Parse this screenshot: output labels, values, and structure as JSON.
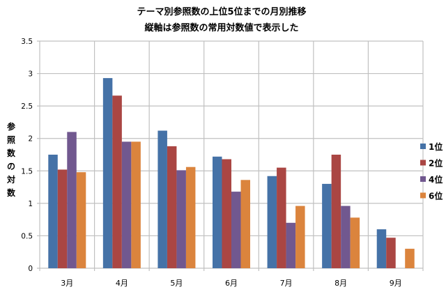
{
  "chart_data": {
    "type": "bar",
    "title": "テーマ別参照数の上位5位までの月別推移",
    "subtitle": "縦軸は参照数の常用対数値で表示した",
    "xlabel": "",
    "ylabel": "参照数の対数",
    "ylim": [
      0,
      3.5
    ],
    "yticks": [
      "0",
      "0.5",
      "1",
      "1.5",
      "2",
      "2.5",
      "3",
      "3.5"
    ],
    "grid": true,
    "legend_position": "right",
    "categories": [
      "3月",
      "4月",
      "5月",
      "6月",
      "7月",
      "8月",
      "9月"
    ],
    "series": [
      {
        "name": "1位",
        "color": "#4572A7",
        "values": [
          1.75,
          2.93,
          2.12,
          1.72,
          1.42,
          1.3,
          0.6
        ]
      },
      {
        "name": "2位",
        "color": "#AA4643",
        "values": [
          1.52,
          2.66,
          1.88,
          1.68,
          1.55,
          1.75,
          0.47
        ]
      },
      {
        "name": "4位",
        "color": "#71588F",
        "values": [
          2.1,
          1.95,
          1.51,
          1.18,
          0.7,
          0.96,
          null
        ]
      },
      {
        "name": "6位",
        "color": "#DB843D",
        "values": [
          1.48,
          1.95,
          1.56,
          1.36,
          0.96,
          0.78,
          0.3
        ]
      }
    ]
  }
}
